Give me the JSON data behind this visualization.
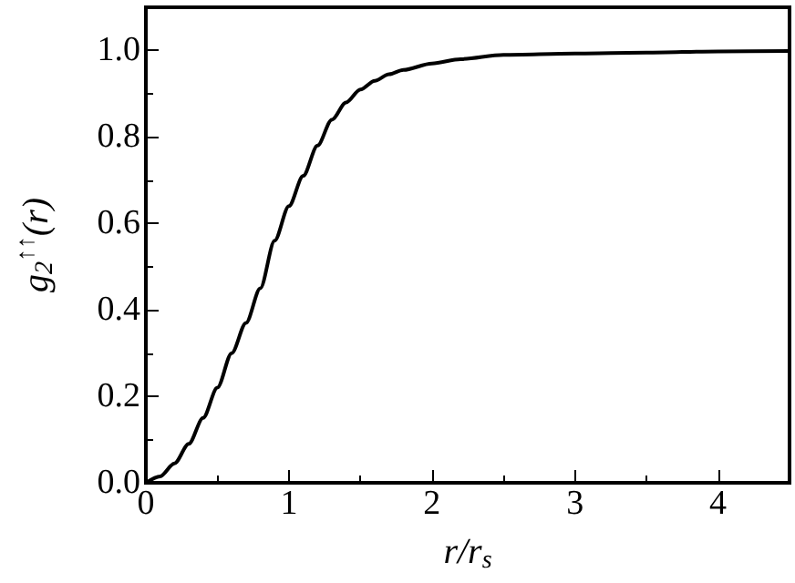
{
  "chart_data": {
    "type": "line",
    "xlabel": "r/r$_{s}$",
    "ylabel": "g$_{2}$$^{↑↑}$(r)",
    "x": [
      0,
      0.1,
      0.2,
      0.3,
      0.4,
      0.5,
      0.6,
      0.7,
      0.8,
      0.9,
      1.0,
      1.1,
      1.2,
      1.3,
      1.4,
      1.5,
      1.6,
      1.7,
      1.8,
      2.0,
      2.2,
      2.5,
      3.0,
      3.5,
      4.0,
      4.5
    ],
    "series": [
      {
        "color": "#000000",
        "values": [
          0,
          0.015,
          0.045,
          0.09,
          0.15,
          0.22,
          0.3,
          0.37,
          0.45,
          0.56,
          0.64,
          0.71,
          0.78,
          0.84,
          0.88,
          0.91,
          0.93,
          0.945,
          0.955,
          0.97,
          0.98,
          0.99,
          0.993,
          0.995,
          0.998,
          0.999
        ]
      }
    ],
    "xlim": [
      0,
      4.5
    ],
    "xticks": [
      0,
      1,
      2,
      3,
      4
    ],
    "ylim": [
      0,
      1.1
    ],
    "yticks": [
      {
        "value": 0,
        "label": "0.0"
      },
      {
        "value": 0.2,
        "label": "0.2"
      },
      {
        "value": 0.4,
        "label": "0.4"
      },
      {
        "value": 0.6,
        "label": "0.6"
      },
      {
        "value": 0.8,
        "label": "0.8"
      },
      {
        "value": 1,
        "label": "1.0"
      }
    ],
    "grid": false,
    "marker": "none",
    "line_style": "solid"
  }
}
